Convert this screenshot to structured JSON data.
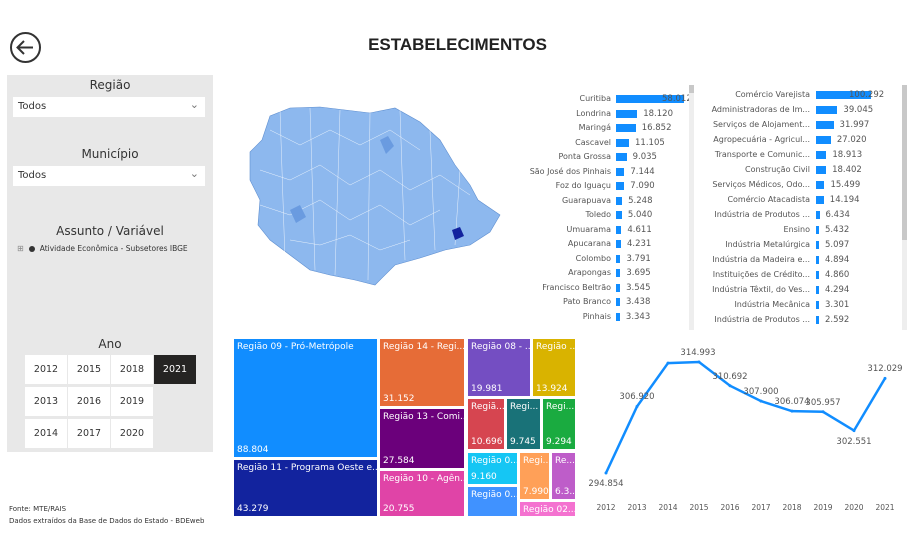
{
  "header": {
    "title": "ESTABELECIMENTOS",
    "back_icon": "back-arrow-circle-icon"
  },
  "filters": {
    "regiao": {
      "label": "Região",
      "value": "Todos"
    },
    "municipio": {
      "label": "Município",
      "value": "Todos"
    },
    "assunto": {
      "label": "Assunto / Variável",
      "option": "Atividade Econômica - Subsetores IBGE"
    },
    "ano": {
      "label": "Ano",
      "years": [
        "2012",
        "2015",
        "2018",
        "2021",
        "2013",
        "2016",
        "2019",
        "2014",
        "2017",
        "2020"
      ],
      "selected": "2021"
    }
  },
  "footer": {
    "source": "Fonte: MTE/RAIS",
    "note": "Dados extraídos da Base de Dados do Estado - BDEweb"
  },
  "colors": {
    "accent": "#118DFF",
    "selected_year": "#252423"
  },
  "municipios_chart": {
    "type": "bar",
    "categories": [
      "Curitiba",
      "Londrina",
      "Maringá",
      "Cascavel",
      "Ponta Grossa",
      "São José dos Pinhais",
      "Foz do Iguaçu",
      "Guarapuava",
      "Toledo",
      "Umuarama",
      "Apucarana",
      "Colombo",
      "Arapongas",
      "Francisco Beltrão",
      "Pato Branco",
      "Pinhais"
    ],
    "values": [
      58012,
      18120,
      16852,
      11105,
      9035,
      7144,
      7090,
      5248,
      5040,
      4611,
      4231,
      3791,
      3695,
      3545,
      3438,
      3343
    ],
    "labels": [
      "58.012",
      "18.120",
      "16.852",
      "11.105",
      "9.035",
      "7.144",
      "7.090",
      "5.248",
      "5.040",
      "4.611",
      "4.231",
      "3.791",
      "3.695",
      "3.545",
      "3.438",
      "3.343"
    ]
  },
  "subsetores_chart": {
    "type": "bar",
    "categories": [
      "Comércio Varejista",
      "Administradoras de Im...",
      "Serviços de Alojament...",
      "Agropecuária - Agricul...",
      "Transporte e Comunic...",
      "Construção Civil",
      "Serviços Médicos, Odo...",
      "Comércio Atacadista",
      "Indústria de Produtos ...",
      "Ensino",
      "Indústria Metalúrgica",
      "Indústria da Madeira e...",
      "Instituições de Crédito...",
      "Indústria Têxtil, do Ves...",
      "Indústria Mecânica",
      "Indústria de Produtos ..."
    ],
    "values": [
      100292,
      39045,
      31997,
      27020,
      18913,
      18402,
      15499,
      14194,
      6434,
      5432,
      5097,
      4894,
      4860,
      4294,
      3301,
      2592
    ],
    "labels": [
      "100.292",
      "39.045",
      "31.997",
      "27.020",
      "18.913",
      "18.402",
      "15.499",
      "14.194",
      "6.434",
      "5.432",
      "5.097",
      "4.894",
      "4.860",
      "4.294",
      "3.301",
      "2.592"
    ]
  },
  "treemap": {
    "type": "treemap",
    "items": [
      {
        "label": "Região 09 - Pró-Metrópole",
        "value": "88.804",
        "color": "#118DFF"
      },
      {
        "label": "Região 11 - Programa Oeste e...",
        "value": "43.279",
        "color": "#12239E"
      },
      {
        "label": "Região 14 - Regi...",
        "value": "31.152",
        "color": "#E66C37"
      },
      {
        "label": "Região 13 - Comi...",
        "value": "27.584",
        "color": "#6B007B"
      },
      {
        "label": "Região 10 - Agên...",
        "value": "20.755",
        "color": "#E044A7"
      },
      {
        "label": "Região 08 - ...",
        "value": "19.981",
        "color": "#744EC2"
      },
      {
        "label": "Região ...",
        "value": "13.924",
        "color": "#D9B300"
      },
      {
        "label": "Regiã...",
        "value": "10.696",
        "color": "#D64550"
      },
      {
        "label": "Regi...",
        "value": "9.745",
        "color": "#197278"
      },
      {
        "label": "Regi...",
        "value": "9.294",
        "color": "#1AAB40"
      },
      {
        "label": "Região 0...",
        "value": "9.160",
        "color": "#15C6F4"
      },
      {
        "label": "Região 0...",
        "value": "",
        "color": "#4092FF"
      },
      {
        "label": "Regi...",
        "value": "7.990",
        "color": "#FFA058"
      },
      {
        "label": "Re...",
        "value": "6.3...",
        "color": "#BE5DC9"
      },
      {
        "label": "Região 02...",
        "value": "",
        "color": "#F472D0"
      }
    ]
  },
  "chart_data": {
    "type": "line",
    "categories": [
      "2012",
      "2013",
      "2014",
      "2015",
      "2016",
      "2017",
      "2018",
      "2019",
      "2020",
      "2021"
    ],
    "values": [
      294854,
      306920,
      314800,
      314993,
      310692,
      307900,
      306074,
      305957,
      302551,
      312029
    ],
    "labels": [
      "294.854",
      "306.920",
      "",
      "314.993",
      "310.692",
      "307.900",
      "306.074",
      "305.957",
      "302.551",
      "312.029"
    ],
    "color": "#118DFF",
    "grid": false
  }
}
